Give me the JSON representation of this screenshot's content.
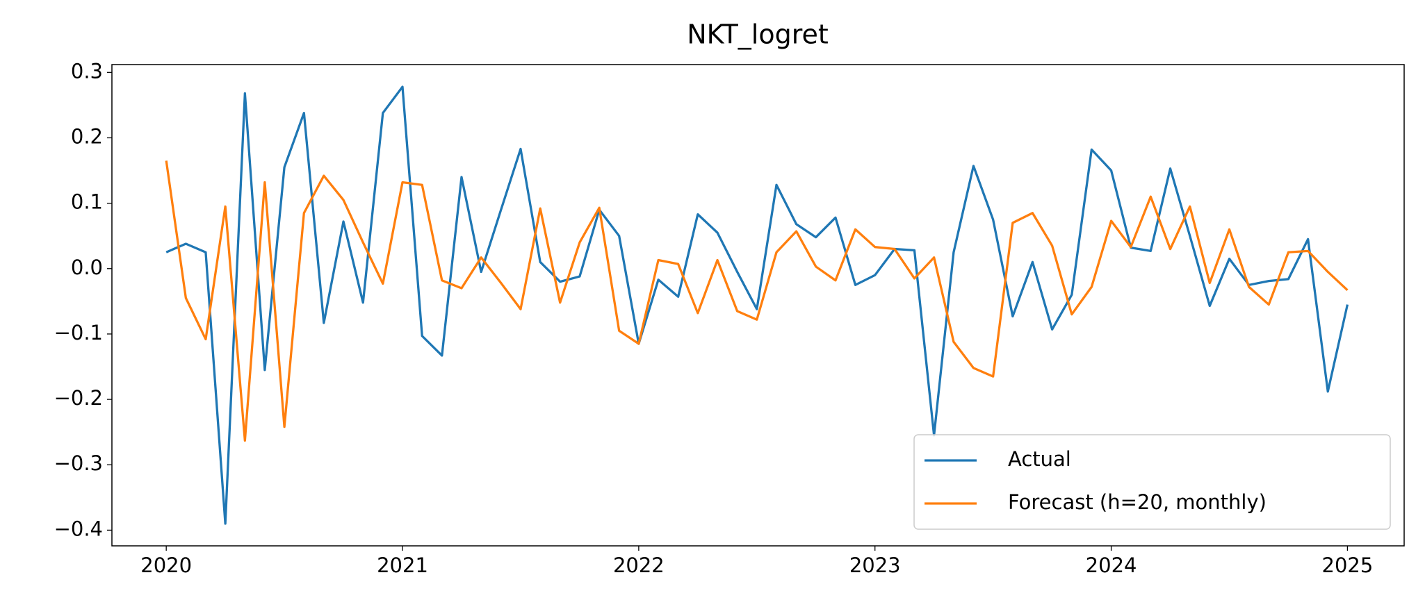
{
  "chart_data": {
    "type": "line",
    "title": "NKT_logret",
    "x": [
      2020,
      2020.083,
      2020.167,
      2020.25,
      2020.333,
      2020.417,
      2020.5,
      2020.583,
      2020.667,
      2020.75,
      2020.833,
      2020.917,
      2021,
      2021.083,
      2021.167,
      2021.25,
      2021.333,
      2021.417,
      2021.5,
      2021.583,
      2021.667,
      2021.75,
      2021.833,
      2021.917,
      2022,
      2022.083,
      2022.167,
      2022.25,
      2022.333,
      2022.417,
      2022.5,
      2022.583,
      2022.667,
      2022.75,
      2022.833,
      2022.917,
      2023,
      2023.083,
      2023.167,
      2023.25,
      2023.333,
      2023.417,
      2023.5,
      2023.583,
      2023.667,
      2023.75,
      2023.833,
      2023.917,
      2024,
      2024.083,
      2024.167,
      2024.25,
      2024.333,
      2024.417,
      2024.5,
      2024.583,
      2024.667,
      2024.75,
      2024.833,
      2024.917,
      2025
    ],
    "series": [
      {
        "name": "Actual",
        "color": "#1f77b4",
        "values": [
          0.025,
          0.038,
          0.025,
          -0.39,
          0.268,
          -0.155,
          0.155,
          0.238,
          -0.083,
          0.072,
          -0.052,
          0.238,
          0.278,
          -0.103,
          -0.133,
          0.14,
          -0.005,
          0.09,
          0.183,
          0.01,
          -0.02,
          -0.012,
          0.09,
          0.05,
          -0.115,
          -0.017,
          -0.043,
          0.083,
          0.055,
          -0.005,
          -0.062,
          0.128,
          0.068,
          0.048,
          0.078,
          -0.025,
          -0.01,
          0.03,
          0.028,
          -0.255,
          0.025,
          0.157,
          0.075,
          -0.073,
          0.01,
          -0.093,
          -0.04,
          0.182,
          0.15,
          0.032,
          0.027,
          0.153,
          0.05,
          -0.057,
          0.015,
          -0.025,
          -0.019,
          -0.016,
          0.045,
          -0.188,
          -0.055
        ]
      },
      {
        "name": "Forecast (h=20, monthly)",
        "color": "#ff7f0e",
        "values": [
          0.165,
          -0.045,
          -0.108,
          0.095,
          -0.263,
          0.132,
          -0.242,
          0.085,
          0.142,
          0.105,
          0.04,
          -0.023,
          0.132,
          0.128,
          -0.018,
          -0.03,
          0.017,
          -0.022,
          -0.062,
          0.092,
          -0.052,
          0.04,
          0.093,
          -0.095,
          -0.115,
          0.013,
          0.007,
          -0.068,
          0.013,
          -0.065,
          -0.078,
          0.025,
          0.057,
          0.003,
          -0.018,
          0.06,
          0.033,
          0.03,
          -0.015,
          0.017,
          -0.112,
          -0.152,
          -0.165,
          0.07,
          0.085,
          0.035,
          -0.07,
          -0.028,
          0.073,
          0.033,
          0.11,
          0.03,
          0.095,
          -0.022,
          0.06,
          -0.028,
          -0.055,
          0.025,
          0.027,
          -0.005,
          -0.033
        ]
      }
    ],
    "xlim": [
      2019.77,
      2025.24
    ],
    "xticks": [
      2020,
      2021,
      2022,
      2023,
      2024,
      2025
    ],
    "ylim": [
      -0.424,
      0.312
    ],
    "yticks": [
      {
        "value": -0.4,
        "label": "−0.4"
      },
      {
        "value": -0.3,
        "label": "−0.3"
      },
      {
        "value": -0.2,
        "label": "−0.2"
      },
      {
        "value": -0.1,
        "label": "−0.1"
      },
      {
        "value": 0,
        "label": "0.0"
      },
      0.1,
      0.2,
      0.3
    ],
    "grid": false,
    "legend": "lower right"
  }
}
